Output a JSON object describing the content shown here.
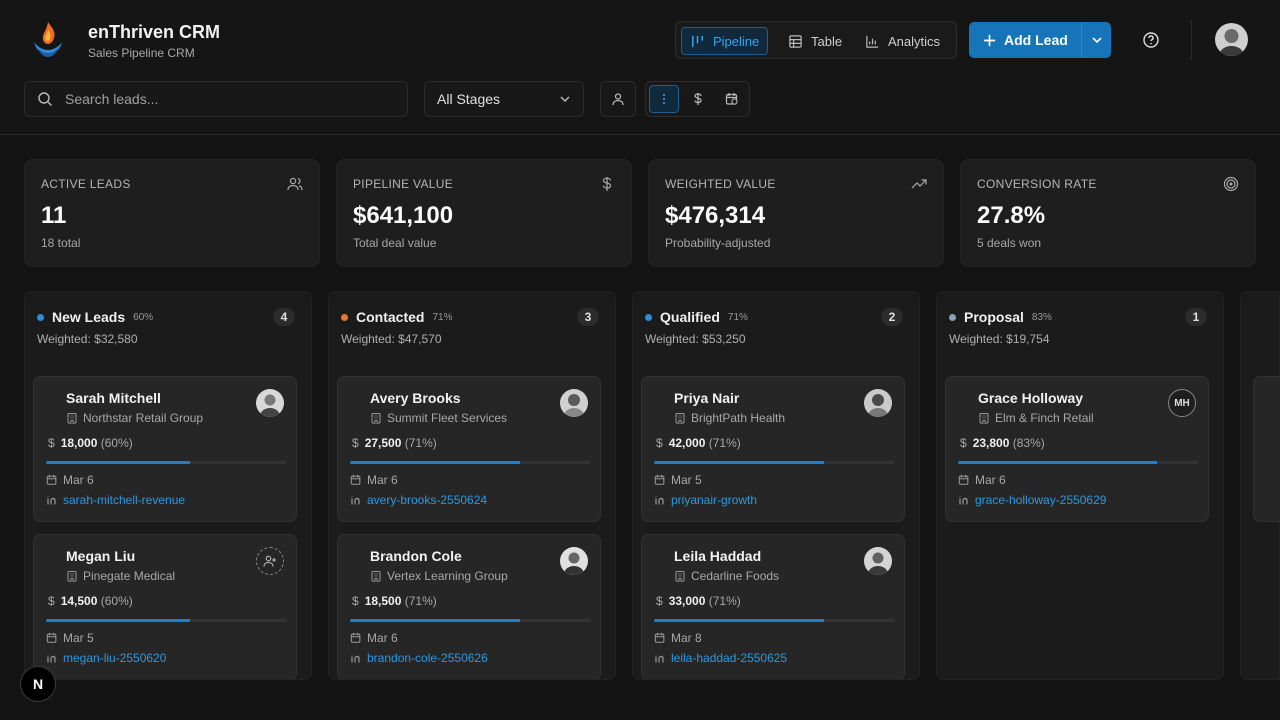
{
  "app": {
    "title": "enThriven CRM",
    "subtitle": "Sales Pipeline CRM"
  },
  "views": [
    {
      "label": "Pipeline",
      "active": true
    },
    {
      "label": "Table",
      "active": false
    },
    {
      "label": "Analytics",
      "active": false
    }
  ],
  "actions": {
    "add_lead": "Add Lead"
  },
  "search": {
    "placeholder": "Search leads..."
  },
  "stage_filter": {
    "selected": "All Stages"
  },
  "stats": [
    {
      "label": "ACTIVE LEADS",
      "value": "11",
      "sub": "18 total",
      "icon": "users-icon"
    },
    {
      "label": "PIPELINE VALUE",
      "value": "$641,100",
      "sub": "Total deal value",
      "icon": "dollar-icon"
    },
    {
      "label": "WEIGHTED VALUE",
      "value": "$476,314",
      "sub": "Probability-adjusted",
      "icon": "trending-up-icon"
    },
    {
      "label": "CONVERSION RATE",
      "value": "27.8%",
      "sub": "5 deals won",
      "icon": "target-icon"
    }
  ],
  "columns": [
    {
      "name": "New Leads",
      "pct": "60%",
      "count": "4",
      "weighted": "Weighted: $32,580",
      "color": "#2a8ee0",
      "cards": [
        {
          "name": "Sarah Mitchell",
          "company": "Northstar Retail Group",
          "amount": "18,000",
          "prob": "(60%)",
          "progress": 0.6,
          "date": "Mar 6",
          "link": "sarah-mitchell-revenue",
          "avatar": "photo"
        },
        {
          "name": "Megan Liu",
          "company": "Pinegate Medical",
          "amount": "14,500",
          "prob": "(60%)",
          "progress": 0.6,
          "date": "Mar 5",
          "link": "megan-liu-2550620",
          "avatar": "assign"
        }
      ]
    },
    {
      "name": "Contacted",
      "pct": "71%",
      "count": "3",
      "weighted": "Weighted: $47,570",
      "color": "#e8782a",
      "cards": [
        {
          "name": "Avery Brooks",
          "company": "Summit Fleet Services",
          "amount": "27,500",
          "prob": "(71%)",
          "progress": 0.71,
          "date": "Mar 6",
          "link": "avery-brooks-2550624",
          "avatar": "photo"
        },
        {
          "name": "Brandon Cole",
          "company": "Vertex Learning Group",
          "amount": "18,500",
          "prob": "(71%)",
          "progress": 0.71,
          "date": "Mar 6",
          "link": "brandon-cole-2550626",
          "avatar": "photo"
        }
      ]
    },
    {
      "name": "Qualified",
      "pct": "71%",
      "count": "2",
      "weighted": "Weighted: $53,250",
      "color": "#2a8ee0",
      "cards": [
        {
          "name": "Priya Nair",
          "company": "BrightPath Health",
          "amount": "42,000",
          "prob": "(71%)",
          "progress": 0.71,
          "date": "Mar 5",
          "link": "priyanair-growth",
          "avatar": "photo"
        },
        {
          "name": "Leila Haddad",
          "company": "Cedarline Foods",
          "amount": "33,000",
          "prob": "(71%)",
          "progress": 0.71,
          "date": "Mar 8",
          "link": "leila-haddad-2550625",
          "avatar": "photo"
        }
      ]
    },
    {
      "name": "Proposal",
      "pct": "83%",
      "count": "1",
      "weighted": "Weighted: $19,754",
      "color": "#8aa0b8",
      "cards": [
        {
          "name": "Grace Holloway",
          "company": "Elm & Finch Retail",
          "amount": "23,800",
          "prob": "(83%)",
          "progress": 0.83,
          "date": "Mar 6",
          "link": "grace-holloway-2550629",
          "avatar": "initials",
          "initials": "MH"
        }
      ]
    }
  ],
  "dev_badge": "N",
  "colors": {
    "accent": "#1674b9",
    "link": "#2e97e0",
    "background": "#131313"
  }
}
